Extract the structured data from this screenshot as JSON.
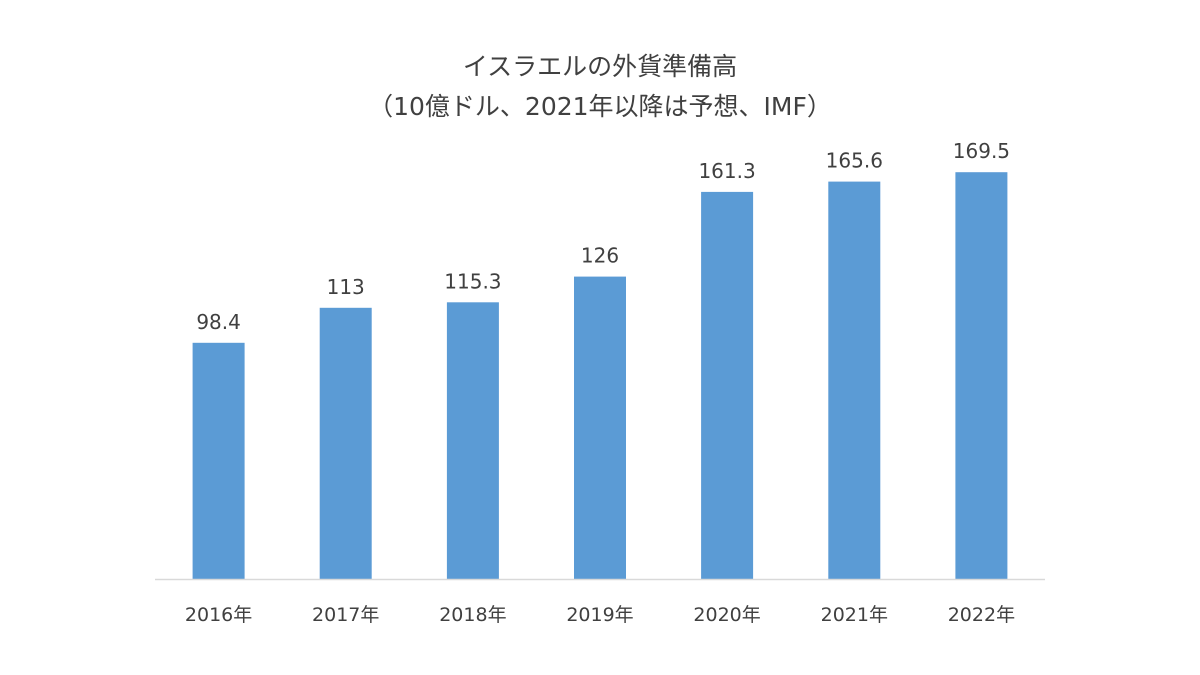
{
  "chart_data": {
    "type": "bar",
    "title": "イスラエルの外貨準備高",
    "subtitle": "（10億ドル、2021年以降は予想、IMF）",
    "categories": [
      "2016年",
      "2017年",
      "2018年",
      "2019年",
      "2020年",
      "2021年",
      "2022年"
    ],
    "values": [
      98.4,
      113,
      115.3,
      126,
      161.3,
      165.6,
      169.5
    ],
    "value_labels": [
      "98.4",
      "113",
      "115.3",
      "126",
      "161.3",
      "165.6",
      "169.5"
    ],
    "ylim": [
      0,
      180
    ],
    "grid": false,
    "legend": "none",
    "bar_color": "#5B9BD5",
    "axis_color": "#D9D9D9",
    "text_color": "#404040"
  }
}
